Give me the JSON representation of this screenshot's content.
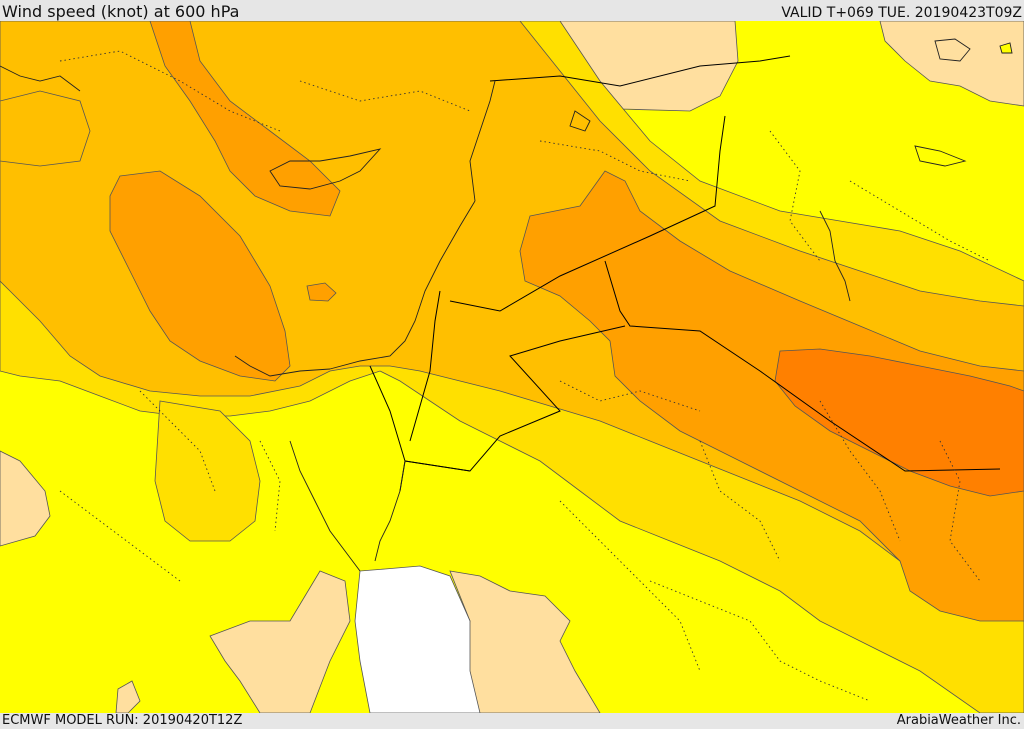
{
  "header": {
    "title": "Wind speed (knot) at 600 hPa",
    "valid": "VALID T+069 TUE. 20190423T09Z"
  },
  "footer": {
    "model_run": "ECMWF MODEL RUN: 20190420T12Z",
    "credit": "ArabiaWeather Inc."
  },
  "palette": {
    "sea_land_lowest": "#ffdf9f",
    "band_1": "#ffff00",
    "band_2": "#ffe000",
    "band_3": "#ffbf00",
    "band_4": "#ffa000",
    "band_5": "#ff8000",
    "no_data": "#ffffff",
    "contour": "#555555",
    "border": "#000000"
  }
}
